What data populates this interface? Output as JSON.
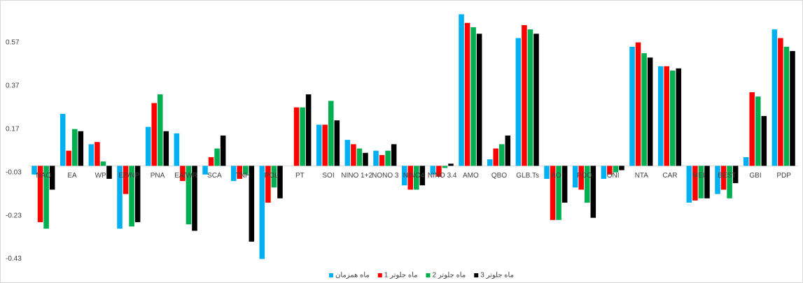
{
  "chart_data": {
    "type": "bar",
    "categories": [
      "NAO",
      "EA",
      "WP",
      "EP/NP",
      "PNA",
      "EA/WR",
      "SCA",
      "TNH",
      "POL",
      "PT",
      "SOI",
      "NINO 1+2",
      "NONO 3",
      "NINO4",
      "NINO 3.4",
      "AMO",
      "QBO",
      "GLB.Ts",
      "AO",
      "PDO",
      "ONI",
      "NTA",
      "CAR",
      "MEI",
      "BEST",
      "GBI",
      "PDP"
    ],
    "series": [
      {
        "name": "ماه همزمان",
        "color": "#00b0f0",
        "values": [
          -0.04,
          0.24,
          0.1,
          -0.29,
          0.18,
          0.15,
          -0.04,
          -0.07,
          -0.43,
          null,
          0.19,
          0.12,
          0.07,
          -0.09,
          -0.04,
          0.7,
          0.03,
          0.59,
          -0.06,
          -0.1,
          -0.06,
          0.55,
          0.46,
          -0.17,
          -0.13,
          0.04,
          0.63
        ]
      },
      {
        "name": "1 ماه جلوتر",
        "color": "#ff0000",
        "values": [
          -0.26,
          0.07,
          0.11,
          -0.13,
          0.29,
          -0.07,
          0.04,
          -0.06,
          -0.17,
          0.27,
          0.19,
          0.1,
          0.05,
          -0.11,
          -0.05,
          0.66,
          0.08,
          0.65,
          -0.25,
          -0.11,
          -0.04,
          0.57,
          0.46,
          -0.16,
          -0.11,
          0.34,
          0.59
        ]
      },
      {
        "name": "2 ماه جلوتر",
        "color": "#00b050",
        "values": [
          -0.29,
          0.17,
          0.02,
          -0.28,
          0.33,
          -0.27,
          0.08,
          -0.04,
          -0.1,
          0.27,
          0.3,
          0.08,
          0.07,
          -0.11,
          -0.01,
          0.64,
          0.1,
          0.63,
          -0.25,
          -0.17,
          -0.03,
          0.52,
          0.44,
          -0.15,
          -0.15,
          0.32,
          0.55
        ]
      },
      {
        "name": "3 ماه جلوتر",
        "color": "#000000",
        "values": [
          -0.11,
          0.16,
          -0.06,
          -0.26,
          0.16,
          -0.3,
          0.14,
          -0.35,
          -0.15,
          0.33,
          0.21,
          0.06,
          0.1,
          -0.09,
          0.01,
          0.61,
          0.14,
          0.61,
          -0.17,
          -0.24,
          -0.02,
          0.5,
          0.45,
          -0.15,
          -0.08,
          0.23,
          0.53
        ]
      }
    ],
    "ylim": [
      -0.47,
      0.74
    ],
    "yticks": [
      -0.43,
      -0.23,
      -0.03,
      0.17,
      0.37,
      0.57
    ],
    "legend": "bottom"
  }
}
